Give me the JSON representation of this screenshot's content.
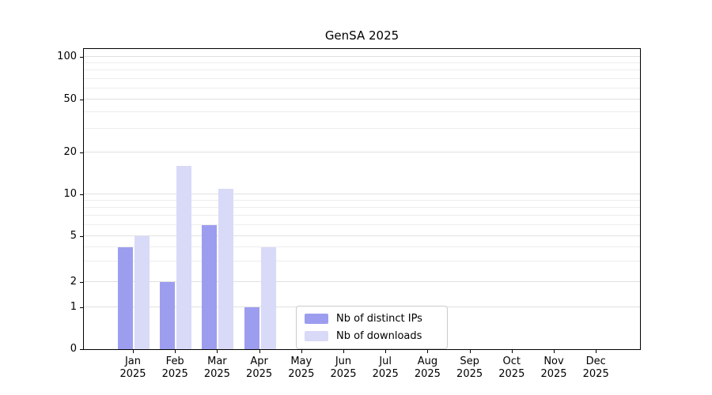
{
  "title": "GenSA 2025",
  "chart_data": {
    "type": "bar",
    "title": "GenSA 2025",
    "categories": [
      "Jan 2025",
      "Feb 2025",
      "Mar 2025",
      "Apr 2025",
      "May 2025",
      "Jun 2025",
      "Jul 2025",
      "Aug 2025",
      "Sep 2025",
      "Oct 2025",
      "Nov 2025",
      "Dec 2025"
    ],
    "series": [
      {
        "name": "Nb of distinct IPs",
        "color": "#9d9df0",
        "values": [
          4,
          2,
          6,
          1,
          0,
          0,
          0,
          0,
          0,
          0,
          0,
          0
        ]
      },
      {
        "name": "Nb of downloads",
        "color": "#d9d9f8",
        "values": [
          5,
          16,
          11,
          4,
          0,
          0,
          0,
          0,
          0,
          0,
          0,
          0
        ]
      }
    ],
    "xlabel": "",
    "ylabel": "",
    "yticks": [
      0,
      1,
      2,
      5,
      10,
      20,
      50,
      100
    ],
    "minor_gridlines": [
      3,
      4,
      6,
      7,
      8,
      9,
      30,
      40,
      60,
      70,
      80,
      90
    ],
    "ylim": [
      0,
      100
    ],
    "yscale": "log-like-with-zero",
    "grid": "horizontal",
    "legend_position": "inside-bottom-center"
  },
  "colors": {
    "distinct_ips": "#9d9df0",
    "downloads": "#d9d9f8",
    "grid_major": "#e0e0e0",
    "grid_minor": "#ededed",
    "axis": "#000000",
    "background": "#ffffff"
  }
}
